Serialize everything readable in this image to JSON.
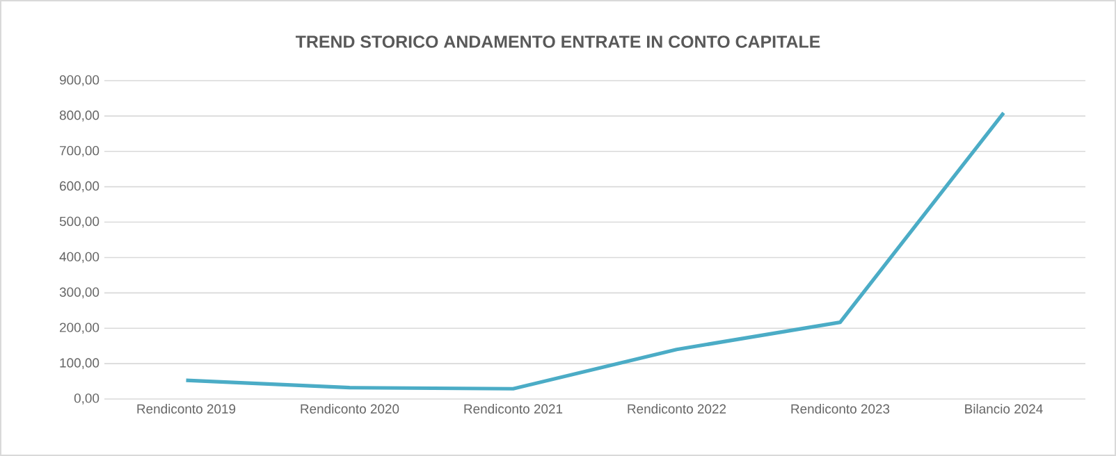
{
  "chart_data": {
    "type": "line",
    "title": "TREND STORICO ANDAMENTO ENTRATE IN CONTO CAPITALE",
    "categories": [
      "Rendiconto 2019",
      "Rendiconto 2020",
      "Rendiconto 2021",
      "Rendiconto 2022",
      "Rendiconto 2023",
      "Bilancio 2024"
    ],
    "series": [
      {
        "color": "#4bacc6",
        "values": [
          53,
          32,
          29,
          140,
          217,
          809
        ]
      }
    ],
    "ylim": [
      0,
      900
    ],
    "yticks": [
      {
        "value": 0,
        "label": "0,00"
      },
      {
        "value": 100,
        "label": "100,00"
      },
      {
        "value": 200,
        "label": "200,00"
      },
      {
        "value": 300,
        "label": "300,00"
      },
      {
        "value": 400,
        "label": "400,00"
      },
      {
        "value": 500,
        "label": "500,00"
      },
      {
        "value": 600,
        "label": "600,00"
      },
      {
        "value": 700,
        "label": "700,00"
      },
      {
        "value": 800,
        "label": "800,00"
      },
      {
        "value": 900,
        "label": "900,00"
      }
    ],
    "grid": "y",
    "legend": false,
    "marker": "none",
    "line_style": "solid"
  }
}
